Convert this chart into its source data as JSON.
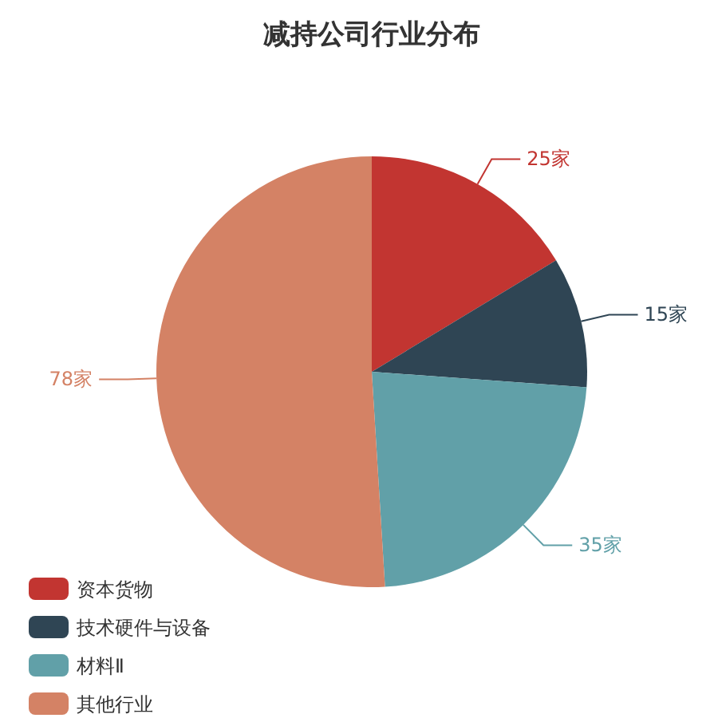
{
  "chart_data": {
    "type": "pie",
    "title": "减持公司行业分布",
    "categories": [
      "资本货物",
      "技术硬件与设备",
      "材料Ⅱ",
      "其他行业"
    ],
    "values": [
      25,
      15,
      35,
      78
    ],
    "value_labels": [
      "25家",
      "15家",
      "35家",
      "78家"
    ],
    "colors": [
      "#c23531",
      "#2f4554",
      "#61a0a8",
      "#d48265"
    ],
    "legend": "bottom left"
  }
}
